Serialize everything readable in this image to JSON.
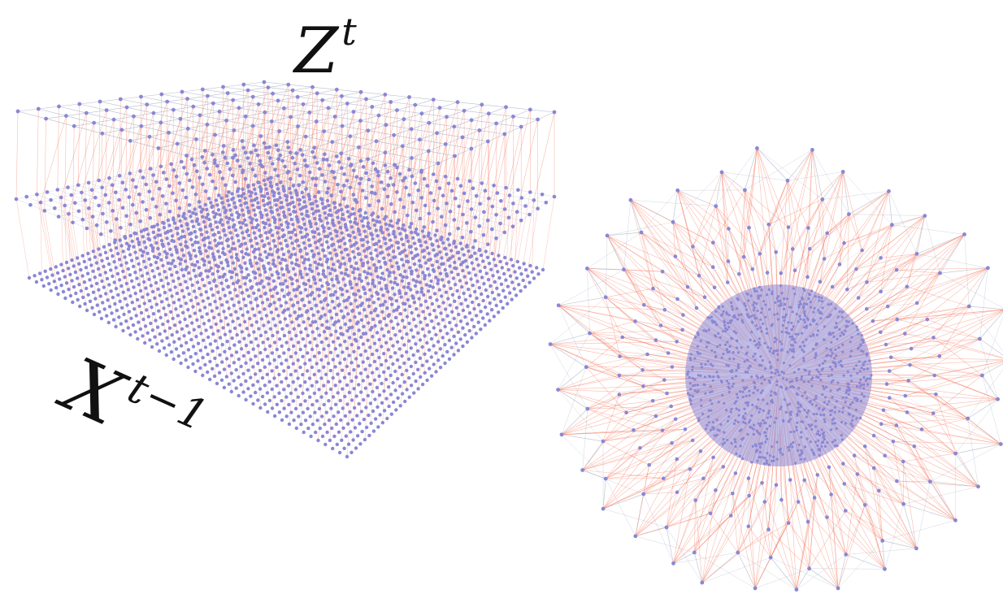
{
  "labels": {
    "top_symbol": "Z",
    "top_superscript": "t",
    "bottom_symbol": "X",
    "bottom_superscript": "t−1"
  },
  "colors": {
    "node": "#8a87d4",
    "cross_edge": "#f36a4f",
    "mesh_edge": "#9aa3b8",
    "text": "#111111"
  },
  "graphs": [
    {
      "name": "layered-grid-graph",
      "layers": [
        "top-coarse-grid",
        "middle-grid",
        "bottom-fine-grid"
      ]
    },
    {
      "name": "layered-sphere-graph",
      "layers": [
        "outer-shell",
        "middle-shell",
        "inner-sphere"
      ]
    }
  ]
}
